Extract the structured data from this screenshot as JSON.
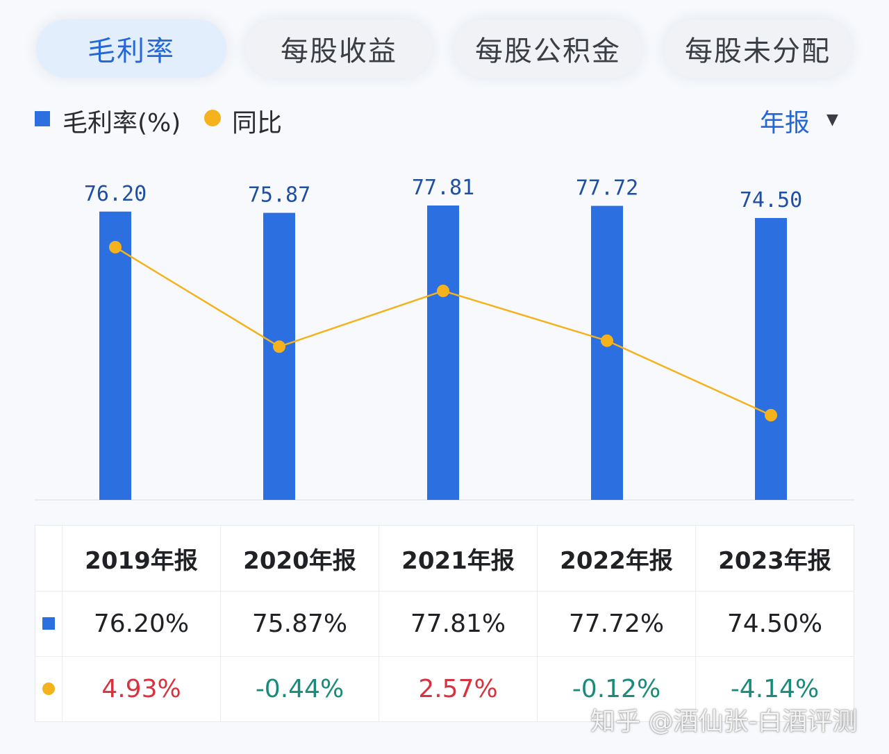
{
  "tabs": [
    {
      "label": "毛利率",
      "active": true
    },
    {
      "label": "每股收益",
      "active": false
    },
    {
      "label": "每股公积金",
      "active": false
    },
    {
      "label": "每股未分配",
      "active": false
    }
  ],
  "legend": {
    "bar_label": "毛利率(%)",
    "line_label": "同比",
    "period_select": "年报",
    "period_arrow": "▼"
  },
  "colors": {
    "bar": "#2b6fe0",
    "line": "#f4b21c",
    "positive": "#d9323f",
    "negative": "#1a8a7a",
    "accent": "#2467d6"
  },
  "chart_data": {
    "type": "bar",
    "categories": [
      "2019年报",
      "2020年报",
      "2021年报",
      "2022年报",
      "2023年报"
    ],
    "series": [
      {
        "name": "毛利率(%)",
        "type": "bar",
        "values": [
          76.2,
          75.87,
          77.81,
          77.72,
          74.5
        ],
        "labels": [
          "76.20",
          "75.87",
          "77.81",
          "77.72",
          "74.50"
        ]
      },
      {
        "name": "同比",
        "type": "line",
        "values": [
          4.93,
          -0.44,
          2.57,
          -0.12,
          -4.14
        ]
      }
    ],
    "grid": false,
    "legend_position": "top-left"
  },
  "table": {
    "headers": [
      "2019年报",
      "2020年报",
      "2021年报",
      "2022年报",
      "2023年报"
    ],
    "margin_row": [
      "76.20%",
      "75.87%",
      "77.81%",
      "77.72%",
      "74.50%"
    ],
    "yoy_row": [
      "4.93%",
      "-0.44%",
      "2.57%",
      "-0.12%",
      "-4.14%"
    ]
  },
  "watermark": "知乎 @酒仙张-白酒评测"
}
